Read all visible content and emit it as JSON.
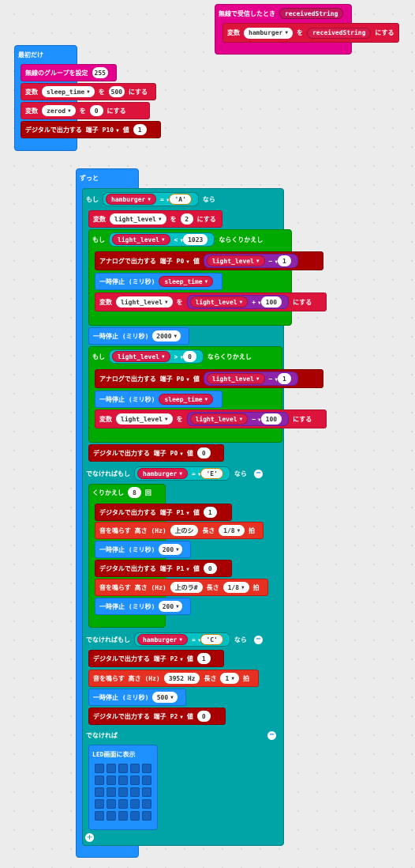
{
  "radio_event": {
    "label": "無線で受信したとき",
    "param": "receivedString",
    "set_label": "変数",
    "var": "hamburger",
    "to": "を",
    "value": "receivedString",
    "suffix": "にする"
  },
  "on_start": {
    "label": "最初だけ",
    "radio_group": {
      "label": "無線のグループを設定",
      "value": "255"
    },
    "set1": {
      "label": "変数",
      "var": "sleep_time",
      "to": "を",
      "value": "500",
      "suffix": "にする"
    },
    "set2": {
      "label": "変数",
      "var": "zerod",
      "to": "を",
      "value": "0",
      "suffix": "にする"
    },
    "digital": {
      "label": "デジタルで出力する 端子",
      "pin": "P10",
      "val_label": "値",
      "value": "1"
    }
  },
  "forever": {
    "label": "ずっと",
    "if1": {
      "label": "もし",
      "var": "hamburger",
      "op": "=",
      "value": "'A'",
      "then": "なら"
    },
    "set_ll": {
      "label": "変数",
      "var": "light_level",
      "to": "を",
      "value": "2",
      "suffix": "にする"
    },
    "while1": {
      "label": "もし",
      "var": "light_level",
      "op": "<",
      "value": "1023",
      "suffix": "ならくりかえし",
      "analog": {
        "label": "アナログで出力する 端子",
        "pin": "P0",
        "val_label": "値",
        "var": "light_level",
        "op": "−",
        "value": "1"
      },
      "pause": {
        "label": "一時停止 (ミリ秒)",
        "var": "sleep_time"
      },
      "set": {
        "label": "変数",
        "var": "light_level",
        "to": "を",
        "var2": "light_level",
        "op": "+",
        "value": "100",
        "suffix": "にする"
      }
    },
    "pause_2000": {
      "label": "一時停止 (ミリ秒)",
      "value": "2000"
    },
    "while2": {
      "label": "もし",
      "var": "light_level",
      "op": ">",
      "value": "0",
      "suffix": "ならくりかえし",
      "analog": {
        "label": "アナログで出力する 端子",
        "pin": "P0",
        "val_label": "値",
        "var": "light_level",
        "op": "−",
        "value": "1"
      },
      "pause": {
        "label": "一時停止 (ミリ秒)",
        "var": "sleep_time"
      },
      "set": {
        "label": "変数",
        "var": "light_level",
        "to": "を",
        "var2": "light_level",
        "op": "−",
        "value": "100",
        "suffix": "にする"
      }
    },
    "digital_p0": {
      "label": "デジタルで出力する 端子",
      "pin": "P0",
      "val_label": "値",
      "value": "0"
    },
    "elif_e": {
      "label": "でなければもし",
      "var": "hamburger",
      "op": "=",
      "value": "'E'",
      "then": "なら"
    },
    "repeat": {
      "label": "くりかえし",
      "value": "8",
      "suffix": "回",
      "d1": {
        "label": "デジタルで出力する 端子",
        "pin": "P1",
        "val_label": "値",
        "value": "1"
      },
      "tone1": {
        "label": "音を鳴らす 高さ (Hz)",
        "note": "上のシ",
        "len_label": "長さ",
        "len": "1/8",
        "beat": "拍"
      },
      "p1": {
        "label": "一時停止 (ミリ秒)",
        "value": "200"
      },
      "d2": {
        "label": "デジタルで出力する 端子",
        "pin": "P1",
        "val_label": "値",
        "value": "0"
      },
      "tone2": {
        "label": "音を鳴らす 高さ (Hz)",
        "note": "上のラ#",
        "len_label": "長さ",
        "len": "1/8",
        "beat": "拍"
      },
      "p2": {
        "label": "一時停止 (ミリ秒)",
        "value": "200"
      }
    },
    "elif_c": {
      "label": "でなければもし",
      "var": "hamburger",
      "op": "=",
      "value": "'C'",
      "then": "なら"
    },
    "c_d1": {
      "label": "デジタルで出力する 端子",
      "pin": "P2",
      "val_label": "値",
      "value": "1"
    },
    "c_tone": {
      "label": "音を鳴らす 高さ (Hz)",
      "note": "3952",
      "unit": "Hz",
      "len_label": "長さ",
      "len": "1",
      "beat": "拍"
    },
    "c_pause": {
      "label": "一時停止 (ミリ秒)",
      "value": "500"
    },
    "c_d2": {
      "label": "デジタルで出力する 端子",
      "pin": "P2",
      "val_label": "値",
      "value": "0"
    },
    "else": {
      "label": "でなければ"
    },
    "led": {
      "label": "LED画面に表示"
    }
  },
  "colors": {
    "event": "#e3008c",
    "basic": "#1e90ff",
    "logic": "#00a4a6",
    "variables": "#dc143c",
    "pins": "#a80000",
    "music": "#e63022",
    "loops": "#00aa00",
    "text": "#b8860b"
  }
}
